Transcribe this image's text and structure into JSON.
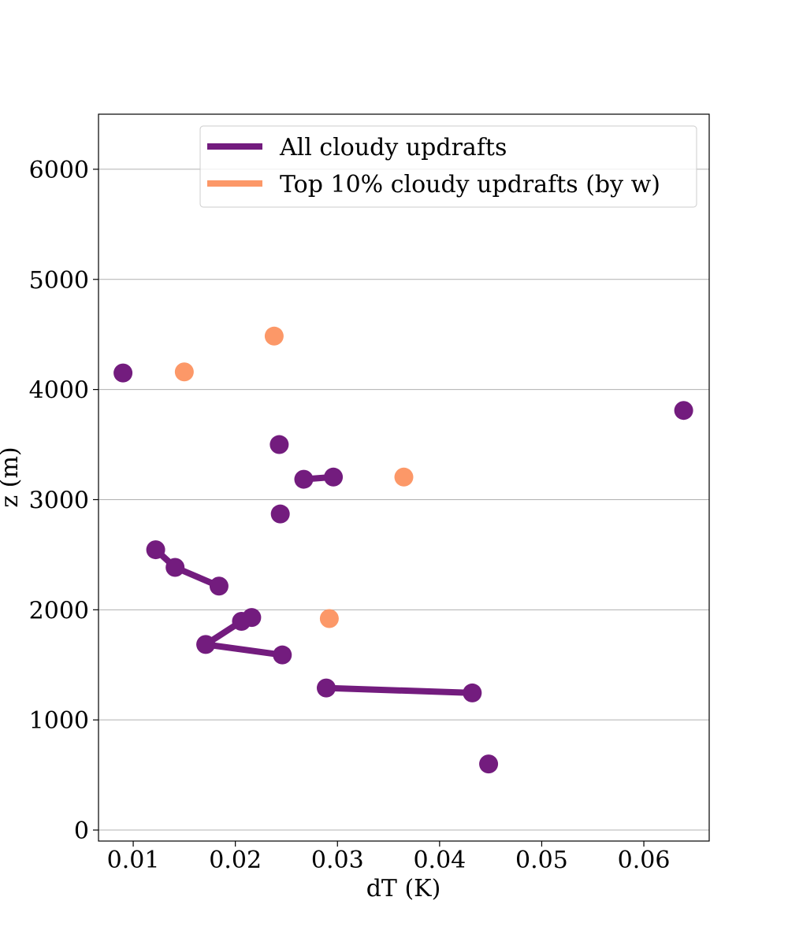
{
  "chart_data": {
    "type": "scatter",
    "xlabel": "dT (K)",
    "ylabel": "z (m)",
    "xlim": [
      0.0066,
      0.0664
    ],
    "ylim": [
      -100,
      6500
    ],
    "x_ticks": [
      0.01,
      0.02,
      0.03,
      0.04,
      0.05,
      0.06
    ],
    "x_tick_labels": [
      "0.01",
      "0.02",
      "0.03",
      "0.04",
      "0.05",
      "0.06"
    ],
    "y_ticks": [
      0,
      1000,
      2000,
      3000,
      4000,
      5000,
      6000
    ],
    "y_tick_labels": [
      "0",
      "1000",
      "2000",
      "3000",
      "4000",
      "5000",
      "6000"
    ],
    "grid": "horizontal",
    "legend_position": "top-right",
    "series": [
      {
        "name": "All cloudy updrafts",
        "color": "#731c7e",
        "segments": [
          [
            [
              0.0448,
              600
            ]
          ],
          [
            [
              0.0289,
              1290
            ],
            [
              0.0432,
              1245
            ]
          ],
          [
            [
              0.0246,
              1590
            ],
            [
              0.0171,
              1685
            ],
            [
              0.0206,
              1895
            ],
            [
              0.0216,
              1930
            ]
          ],
          [
            [
              0.0184,
              2215
            ],
            [
              0.0141,
              2385
            ],
            [
              0.0122,
              2545
            ]
          ],
          [
            [
              0.0244,
              2870
            ]
          ],
          [
            [
              0.0267,
              3185
            ],
            [
              0.0296,
              3205
            ]
          ],
          [
            [
              0.0243,
              3500
            ]
          ],
          [
            [
              0.0639,
              3810
            ]
          ],
          [
            [
              0.009,
              4150
            ]
          ]
        ]
      },
      {
        "name": "Top 10% cloudy updrafts (by w)",
        "color": "#fc9868",
        "segments": [
          [
            [
              0.0292,
              1920
            ]
          ],
          [
            [
              0.0365,
              3205
            ]
          ],
          [
            [
              0.015,
              4160
            ]
          ],
          [
            [
              0.0238,
              4485
            ]
          ]
        ]
      }
    ]
  }
}
